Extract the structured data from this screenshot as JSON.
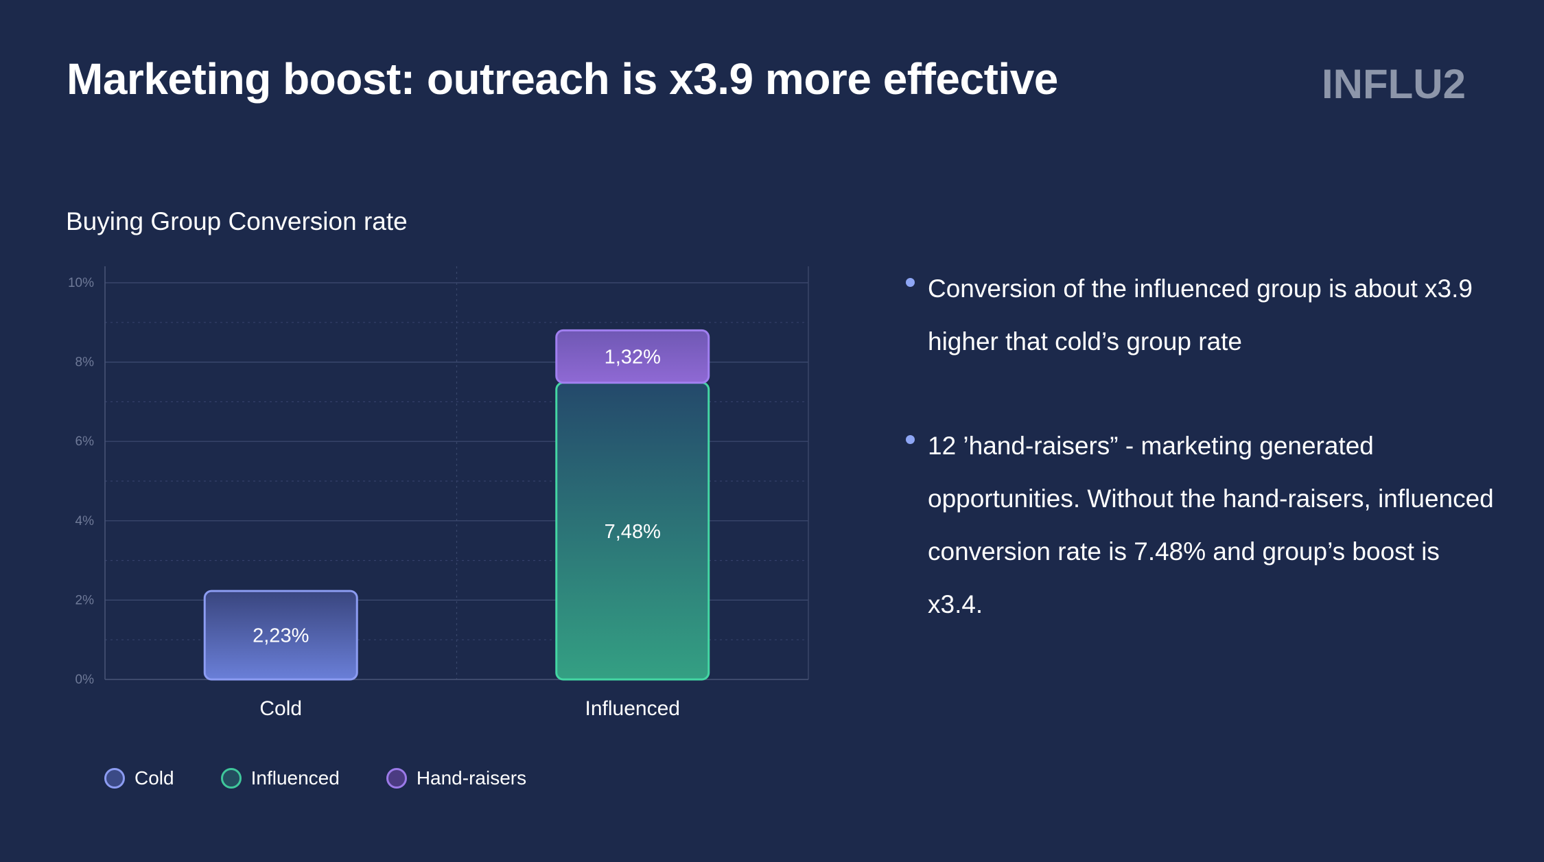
{
  "slide": {
    "title": "Marketing boost: outreach is x3.9 more effective",
    "brand": "INFLU2"
  },
  "chart_data": {
    "type": "bar",
    "stacked": true,
    "title": "Buying Group Conversion rate",
    "categories": [
      "Cold",
      "Influenced"
    ],
    "series": [
      {
        "name": "Cold",
        "values": [
          2.23,
          0
        ],
        "labels": [
          "2,23%",
          ""
        ],
        "fill_top": "#39457e",
        "fill_bottom": "#6a7fd8",
        "stroke": "#8c9cf2"
      },
      {
        "name": "Influenced",
        "values": [
          0,
          7.48
        ],
        "labels": [
          "",
          "7,48%"
        ],
        "fill_top": "#24496b",
        "fill_bottom": "#34a083",
        "stroke": "#44d6a3"
      },
      {
        "name": "Hand-raisers",
        "values": [
          0,
          1.32
        ],
        "labels": [
          "",
          "1,32%"
        ],
        "fill_top": "#6f58b4",
        "fill_bottom": "#8f69d4",
        "stroke": "#a07ff0"
      }
    ],
    "ylim": [
      0,
      10
    ],
    "yticks": [
      "0%",
      "2%",
      "4%",
      "6%",
      "8%",
      "10%"
    ],
    "grid": true,
    "legend_position": "bottom-left"
  },
  "legend": [
    {
      "name": "Cold",
      "fill": "#3b4a86",
      "stroke": "#8c9cf2"
    },
    {
      "name": "Influenced",
      "fill": "#244d5f",
      "stroke": "#3fc79b"
    },
    {
      "name": "Hand-raisers",
      "fill": "#4b3b82",
      "stroke": "#9b7ae8"
    }
  ],
  "bullets": [
    "Conversion of the influenced group is about x3.9 higher that cold’s group rate",
    "12 ’hand-raisers” - marketing generated opportunities. Without the hand-raisers, influenced conversion rate is 7.48% and group’s boost is x3.4."
  ]
}
